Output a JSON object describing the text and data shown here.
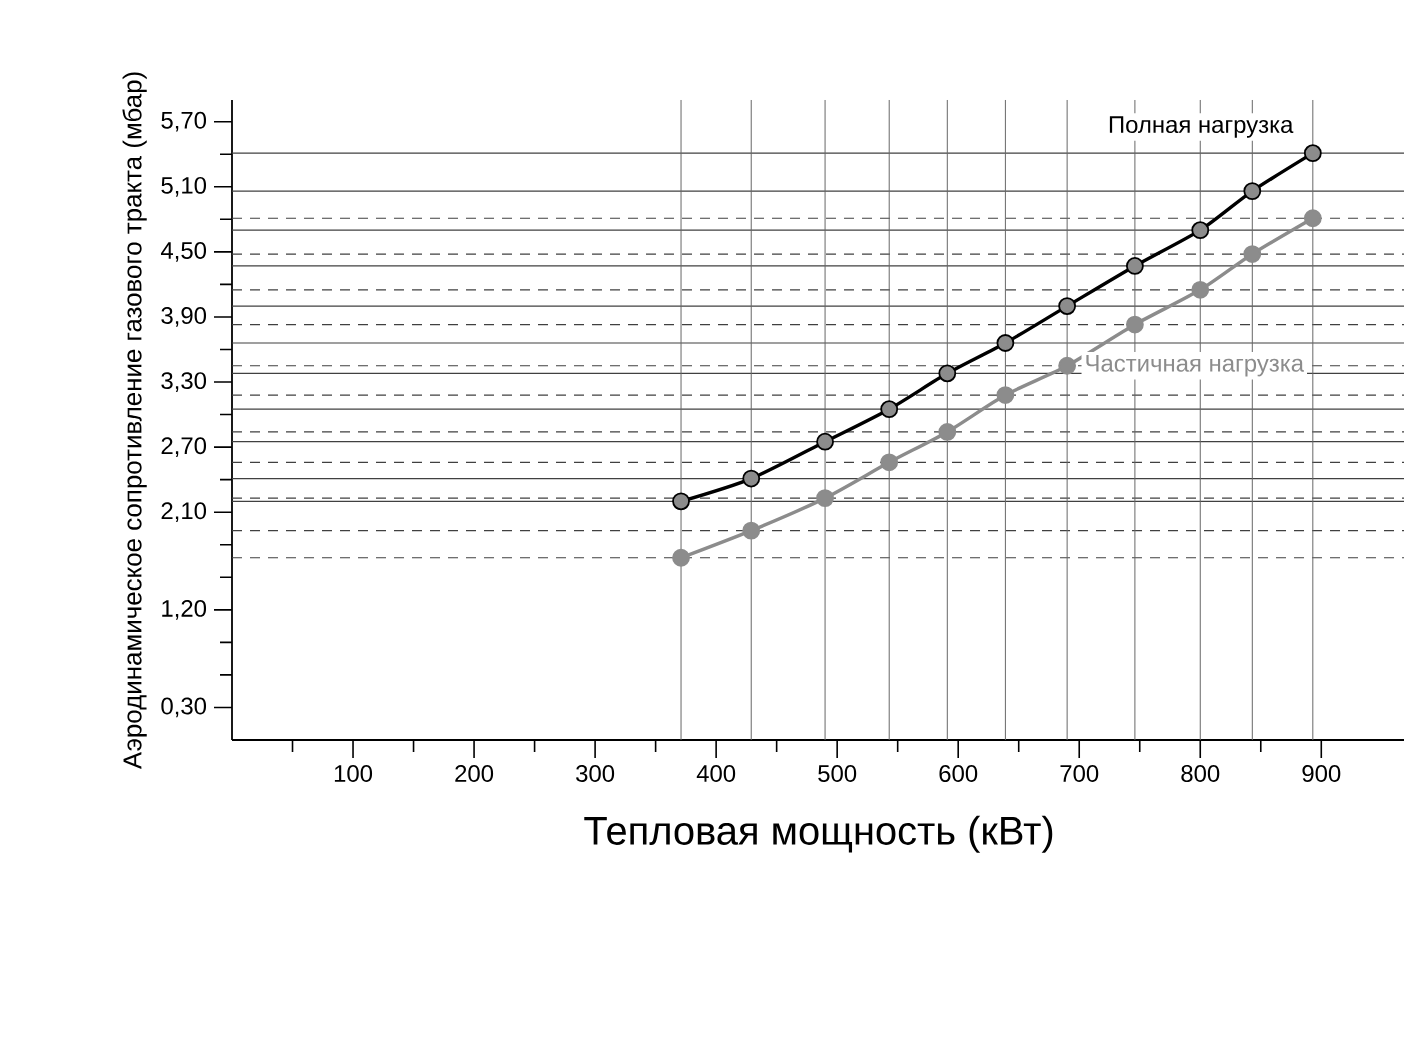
{
  "chart_data": {
    "type": "line",
    "xlabel": "Тепловая мощность (кВт)",
    "ylabel": "Аэродинамическое сопротивление газового тракта (мбар)",
    "xlim": [
      0,
      970
    ],
    "ylim": [
      0,
      5.9
    ],
    "xticks": [
      {
        "value": 50,
        "label": null
      },
      100,
      {
        "value": 150,
        "label": null
      },
      200,
      {
        "value": 250,
        "label": null
      },
      300,
      {
        "value": 350,
        "label": null
      },
      400,
      {
        "value": 450,
        "label": null
      },
      500,
      {
        "value": 550,
        "label": null
      },
      600,
      {
        "value": 650,
        "label": null
      },
      700,
      {
        "value": 750,
        "label": null
      },
      800,
      {
        "value": 850,
        "label": null
      },
      900
    ],
    "yticks": [
      {
        "value": 0.3,
        "label": "0,30"
      },
      {
        "value": 0.6,
        "label": null
      },
      {
        "value": 0.9,
        "label": null
      },
      {
        "value": 1.2,
        "label": "1,20"
      },
      {
        "value": 1.5,
        "label": null
      },
      {
        "value": 1.8,
        "label": null
      },
      {
        "value": 2.1,
        "label": "2,10"
      },
      {
        "value": 2.4,
        "label": null
      },
      {
        "value": 2.7,
        "label": "2,70"
      },
      {
        "value": 3.0,
        "label": null
      },
      {
        "value": 3.3,
        "label": "3,30"
      },
      {
        "value": 3.6,
        "label": null
      },
      {
        "value": 3.9,
        "label": "3,90"
      },
      {
        "value": 4.2,
        "label": null
      },
      {
        "value": 4.5,
        "label": "4,50"
      },
      {
        "value": 4.8,
        "label": null
      },
      {
        "value": 5.1,
        "label": "5,10"
      },
      {
        "value": 5.4,
        "label": null
      },
      {
        "value": 5.7,
        "label": "5,70"
      }
    ],
    "marker": "circle",
    "series": [
      {
        "name": "Полная нагрузка",
        "color": "#000000",
        "x": [
          371,
          429,
          490,
          543,
          591,
          639,
          690,
          746,
          800,
          843,
          893
        ],
        "values": [
          2.2,
          2.41,
          2.75,
          3.05,
          3.38,
          3.66,
          4.0,
          4.37,
          4.7,
          5.06,
          5.41
        ]
      },
      {
        "name": "Частичная нагрузка",
        "color": "#8c8c8c",
        "x": [
          371,
          429,
          490,
          543,
          591,
          639,
          690,
          746,
          800,
          843,
          893
        ],
        "values": [
          1.68,
          1.93,
          2.23,
          2.56,
          2.84,
          3.18,
          3.45,
          3.83,
          4.15,
          4.48,
          4.81
        ]
      }
    ],
    "ref_lines": [
      {
        "axis": "x",
        "value": 371
      },
      {
        "axis": "x",
        "value": 429
      },
      {
        "axis": "x",
        "value": 490
      },
      {
        "axis": "x",
        "value": 543
      },
      {
        "axis": "x",
        "value": 591
      },
      {
        "axis": "x",
        "value": 639
      },
      {
        "axis": "x",
        "value": 690
      },
      {
        "axis": "x",
        "value": 746
      },
      {
        "axis": "x",
        "value": 800
      },
      {
        "axis": "x",
        "value": 843
      },
      {
        "axis": "x",
        "value": 893
      },
      {
        "axis": "y",
        "value": 2.2,
        "line_style": "solid"
      },
      {
        "axis": "y",
        "value": 2.41,
        "line_style": "solid"
      },
      {
        "axis": "y",
        "value": 2.75,
        "line_style": "solid"
      },
      {
        "axis": "y",
        "value": 3.05,
        "line_style": "solid"
      },
      {
        "axis": "y",
        "value": 3.38,
        "line_style": "solid"
      },
      {
        "axis": "y",
        "value": 3.66,
        "line_style": "solid"
      },
      {
        "axis": "y",
        "value": 4.0,
        "line_style": "solid"
      },
      {
        "axis": "y",
        "value": 4.37,
        "line_style": "solid"
      },
      {
        "axis": "y",
        "value": 4.7,
        "line_style": "solid"
      },
      {
        "axis": "y",
        "value": 5.06,
        "line_style": "solid"
      },
      {
        "axis": "y",
        "value": 5.41,
        "line_style": "solid"
      },
      {
        "axis": "y",
        "value": 1.68,
        "line_style": "dashed"
      },
      {
        "axis": "y",
        "value": 1.93,
        "line_style": "dashed"
      },
      {
        "axis": "y",
        "value": 2.23,
        "line_style": "dashed"
      },
      {
        "axis": "y",
        "value": 2.56,
        "line_style": "dashed"
      },
      {
        "axis": "y",
        "value": 2.84,
        "line_style": "dashed"
      },
      {
        "axis": "y",
        "value": 3.18,
        "line_style": "dashed"
      },
      {
        "axis": "y",
        "value": 3.45,
        "line_style": "dashed"
      },
      {
        "axis": "y",
        "value": 3.83,
        "line_style": "dashed"
      },
      {
        "axis": "y",
        "value": 4.15,
        "line_style": "dashed"
      },
      {
        "axis": "y",
        "value": 4.48,
        "line_style": "dashed"
      },
      {
        "axis": "y",
        "value": 4.81,
        "line_style": "dashed"
      }
    ]
  }
}
